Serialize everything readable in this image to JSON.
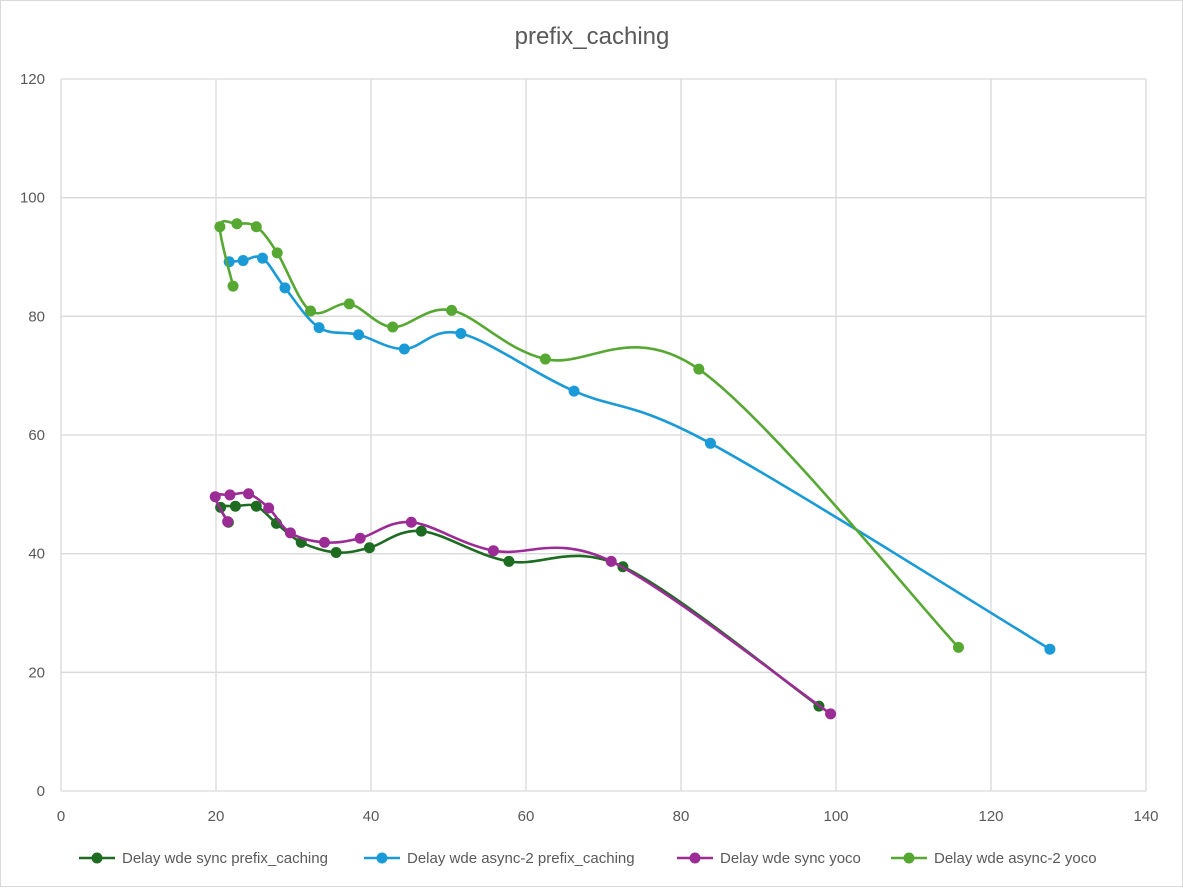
{
  "chart_data": {
    "type": "scatter",
    "title": "prefix_caching",
    "xlabel": "",
    "ylabel": "",
    "xlim": [
      0,
      140
    ],
    "ylim": [
      0,
      120
    ],
    "x_ticks": [
      0,
      20,
      40,
      60,
      80,
      100,
      120,
      140
    ],
    "y_ticks": [
      0,
      20,
      40,
      60,
      80,
      100,
      120
    ],
    "grid": true,
    "smooth_lines": true,
    "legend_position": "bottom",
    "series": [
      {
        "name": "Delay wde sync prefix_caching",
        "color": "#1e6b22",
        "points": [
          [
            97.8,
            14.3
          ],
          [
            72.5,
            37.8
          ],
          [
            57.8,
            38.7
          ],
          [
            46.5,
            43.8
          ],
          [
            39.8,
            41.0
          ],
          [
            35.5,
            40.2
          ],
          [
            31.0,
            41.9
          ],
          [
            27.8,
            45.1
          ],
          [
            25.2,
            48.0
          ],
          [
            22.5,
            48.0
          ],
          [
            20.6,
            47.8
          ],
          [
            21.6,
            45.3
          ]
        ]
      },
      {
        "name": "Delay wde async-2 prefix_caching",
        "color": "#1a9bd7",
        "points": [
          [
            127.6,
            23.9
          ],
          [
            83.8,
            58.6
          ],
          [
            66.2,
            67.4
          ],
          [
            51.6,
            77.1
          ],
          [
            44.3,
            74.5
          ],
          [
            38.4,
            76.9
          ],
          [
            33.3,
            78.1
          ],
          [
            28.9,
            84.8
          ],
          [
            26.0,
            89.8
          ],
          [
            23.5,
            89.4
          ],
          [
            21.7,
            89.2
          ]
        ]
      },
      {
        "name": "Delay wde sync yoco",
        "color": "#9c2c95",
        "points": [
          [
            99.3,
            13.0
          ],
          [
            71.0,
            38.7
          ],
          [
            55.8,
            40.5
          ],
          [
            45.2,
            45.3
          ],
          [
            38.6,
            42.6
          ],
          [
            34.0,
            41.9
          ],
          [
            29.6,
            43.5
          ],
          [
            26.8,
            47.7
          ],
          [
            24.2,
            50.1
          ],
          [
            21.8,
            49.9
          ],
          [
            19.9,
            49.6
          ],
          [
            21.5,
            45.4
          ]
        ]
      },
      {
        "name": "Delay wde async-2 yoco",
        "color": "#57a833",
        "points": [
          [
            115.8,
            24.2
          ],
          [
            82.3,
            71.1
          ],
          [
            62.5,
            72.8
          ],
          [
            50.4,
            81.0
          ],
          [
            42.8,
            78.2
          ],
          [
            37.2,
            82.1
          ],
          [
            32.2,
            80.9
          ],
          [
            27.9,
            90.7
          ],
          [
            25.2,
            95.1
          ],
          [
            22.7,
            95.6
          ],
          [
            20.5,
            95.1
          ],
          [
            22.2,
            85.1
          ]
        ]
      }
    ]
  }
}
